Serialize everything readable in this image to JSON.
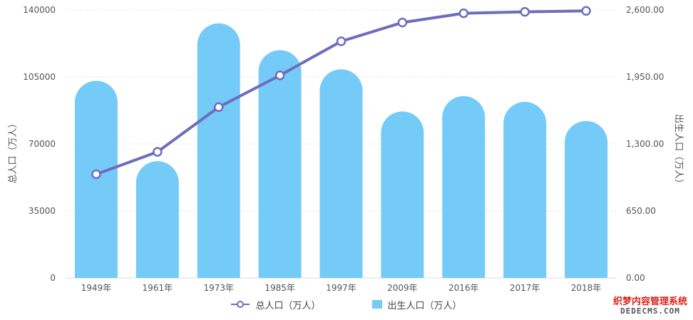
{
  "chart_data": {
    "type": "bar",
    "categories": [
      "1949年",
      "1961年",
      "1973年",
      "1985年",
      "1997年",
      "2009年",
      "2016年",
      "2017年",
      "2018年"
    ],
    "series": [
      {
        "name": "出生人口（万人）",
        "type": "bar",
        "axis": "left",
        "values": [
          103000,
          61000,
          133000,
          119000,
          109000,
          87000,
          95000,
          92000,
          82000
        ]
      },
      {
        "name": "总人口（万人）",
        "type": "line",
        "axis": "left",
        "values": [
          54167,
          65859,
          89211,
          105851,
          123626,
          133450,
          138271,
          139008,
          139538
        ]
      }
    ],
    "ylabel_left": "总人口（万人）",
    "ylabel_right": "出生人口（万人）",
    "ylim_left": [
      0,
      140000
    ],
    "ylim_right": [
      0,
      2600
    ],
    "yticks_left": [
      "0",
      "35000",
      "70000",
      "105000",
      "140000"
    ],
    "yticks_right": [
      "0.00",
      "650.00",
      "1,300.00",
      "1,950.00",
      "2,600.00"
    ],
    "grid": true,
    "legend_position": "bottom",
    "colors": {
      "bar": "#75cbf8",
      "line": "#6d6dbd",
      "grid": "#dddddd",
      "axis_text": "#555555"
    }
  },
  "legend": {
    "line_label": "总人口（万人）",
    "bar_label": "出生人口（万人）"
  },
  "watermark": {
    "top": "织梦内容管理系统",
    "bottom": "DEDECMS.COM"
  }
}
